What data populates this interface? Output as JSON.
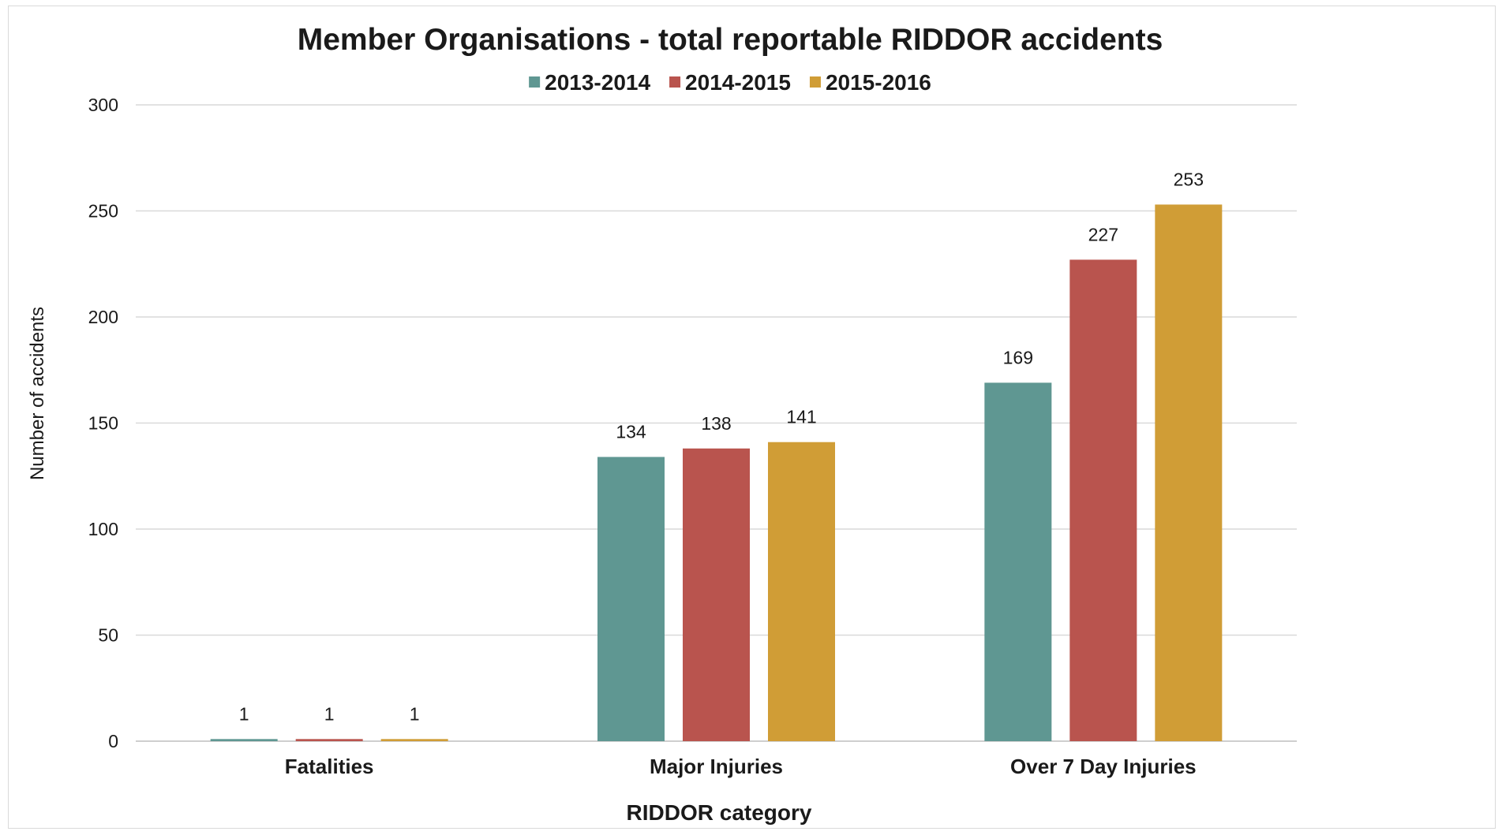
{
  "chart_data": {
    "type": "bar",
    "title": "Member Organisations - total reportable RIDDOR accidents",
    "xlabel": "RIDDOR category",
    "ylabel": "Number of accidents",
    "categories": [
      "Fatalities",
      "Major Injuries",
      "Over 7 Day Injuries"
    ],
    "series": [
      {
        "name": "2013-2014",
        "color": "#5f9792",
        "values": [
          1,
          134,
          169
        ]
      },
      {
        "name": "2014-2015",
        "color": "#b9544e",
        "values": [
          1,
          138,
          227
        ]
      },
      {
        "name": "2015-2016",
        "color": "#d09d36",
        "values": [
          1,
          141,
          253
        ]
      }
    ],
    "ylim": [
      0,
      300
    ],
    "yticks": [
      0,
      50,
      100,
      150,
      200,
      250,
      300
    ],
    "grid": true,
    "legend_position": "top",
    "data_labels": true
  }
}
